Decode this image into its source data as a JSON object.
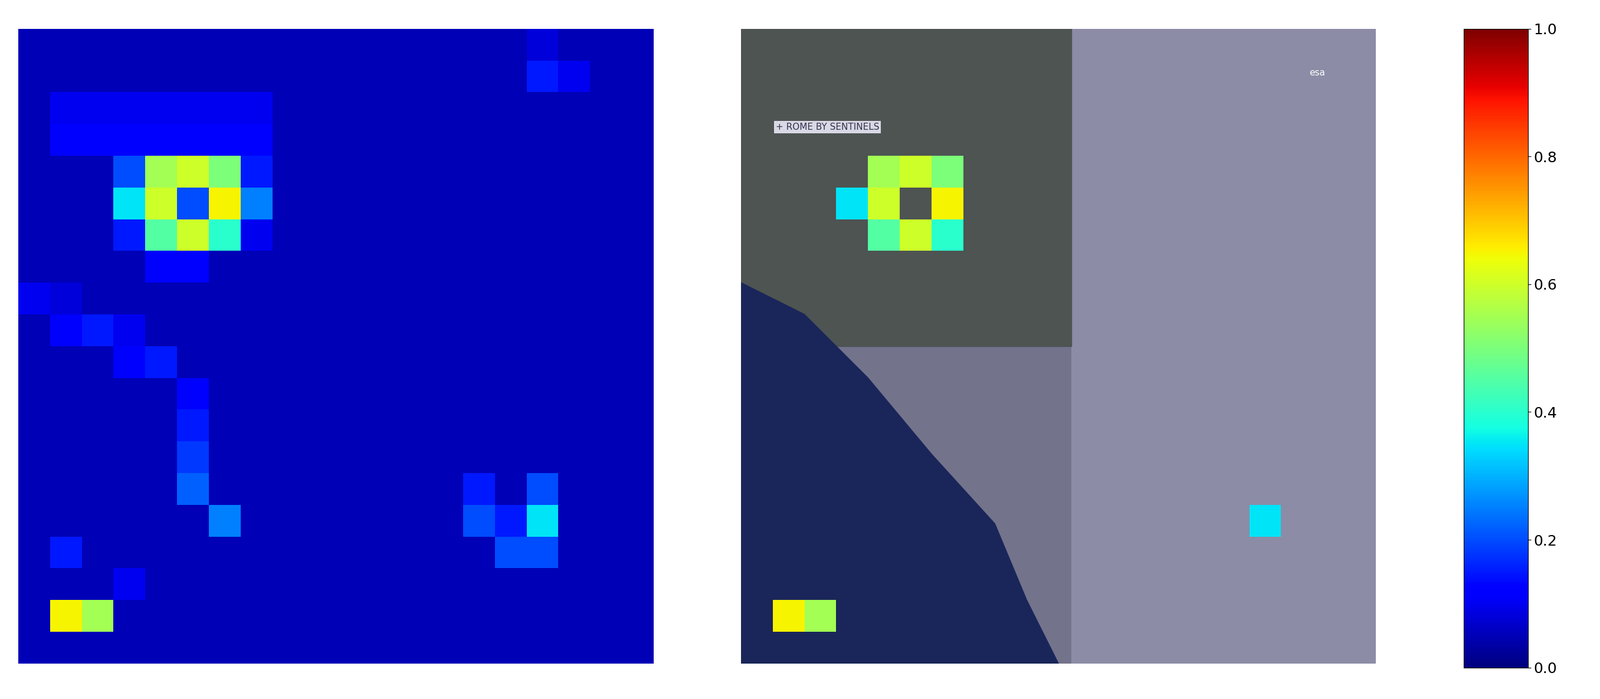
{
  "chart_data": {
    "type": "heatmap",
    "tick_labels": false,
    "cells": [
      [
        0.05,
        0.05,
        0.05,
        0.05,
        0.05,
        0.05,
        0.05,
        0.05,
        0.05,
        0.05,
        0.05,
        0.05,
        0.05,
        0.05,
        0.05,
        0.05,
        0.08,
        0.05,
        0.05,
        0.05
      ],
      [
        0.05,
        0.05,
        0.05,
        0.05,
        0.05,
        0.05,
        0.05,
        0.05,
        0.05,
        0.05,
        0.05,
        0.05,
        0.05,
        0.05,
        0.05,
        0.05,
        0.15,
        0.1,
        0.05,
        0.05
      ],
      [
        0.05,
        0.1,
        0.1,
        0.1,
        0.1,
        0.1,
        0.1,
        0.1,
        0.05,
        0.05,
        0.05,
        0.05,
        0.05,
        0.05,
        0.05,
        0.05,
        0.05,
        0.05,
        0.05,
        0.05
      ],
      [
        0.05,
        0.12,
        0.12,
        0.12,
        0.12,
        0.12,
        0.12,
        0.12,
        0.05,
        0.05,
        0.05,
        0.05,
        0.05,
        0.05,
        0.05,
        0.05,
        0.05,
        0.05,
        0.05,
        0.05
      ],
      [
        0.05,
        0.05,
        0.05,
        0.2,
        0.55,
        0.6,
        0.5,
        0.15,
        0.05,
        0.05,
        0.05,
        0.05,
        0.05,
        0.05,
        0.05,
        0.05,
        0.05,
        0.05,
        0.05,
        0.05
      ],
      [
        0.05,
        0.05,
        0.05,
        0.35,
        0.6,
        0.2,
        0.65,
        0.25,
        0.05,
        0.05,
        0.05,
        0.05,
        0.05,
        0.05,
        0.05,
        0.05,
        0.05,
        0.05,
        0.05,
        0.05
      ],
      [
        0.05,
        0.05,
        0.05,
        0.15,
        0.45,
        0.6,
        0.4,
        0.1,
        0.05,
        0.05,
        0.05,
        0.05,
        0.05,
        0.05,
        0.05,
        0.05,
        0.05,
        0.05,
        0.05,
        0.05
      ],
      [
        0.05,
        0.05,
        0.05,
        0.05,
        0.12,
        0.12,
        0.05,
        0.05,
        0.05,
        0.05,
        0.05,
        0.05,
        0.05,
        0.05,
        0.05,
        0.05,
        0.05,
        0.05,
        0.05,
        0.05
      ],
      [
        0.1,
        0.08,
        0.05,
        0.05,
        0.05,
        0.05,
        0.05,
        0.05,
        0.05,
        0.05,
        0.05,
        0.05,
        0.05,
        0.05,
        0.05,
        0.05,
        0.05,
        0.05,
        0.05,
        0.05
      ],
      [
        0.05,
        0.12,
        0.15,
        0.1,
        0.05,
        0.05,
        0.05,
        0.05,
        0.05,
        0.05,
        0.05,
        0.05,
        0.05,
        0.05,
        0.05,
        0.05,
        0.05,
        0.05,
        0.05,
        0.05
      ],
      [
        0.05,
        0.05,
        0.05,
        0.12,
        0.15,
        0.05,
        0.05,
        0.05,
        0.05,
        0.05,
        0.05,
        0.05,
        0.05,
        0.05,
        0.05,
        0.05,
        0.05,
        0.05,
        0.05,
        0.05
      ],
      [
        0.05,
        0.05,
        0.05,
        0.05,
        0.05,
        0.12,
        0.05,
        0.05,
        0.05,
        0.05,
        0.05,
        0.05,
        0.05,
        0.05,
        0.05,
        0.05,
        0.05,
        0.05,
        0.05,
        0.05
      ],
      [
        0.05,
        0.05,
        0.05,
        0.05,
        0.05,
        0.15,
        0.05,
        0.05,
        0.05,
        0.05,
        0.05,
        0.05,
        0.05,
        0.05,
        0.05,
        0.05,
        0.05,
        0.05,
        0.05,
        0.05
      ],
      [
        0.05,
        0.05,
        0.05,
        0.05,
        0.05,
        0.18,
        0.05,
        0.05,
        0.05,
        0.05,
        0.05,
        0.05,
        0.05,
        0.05,
        0.05,
        0.05,
        0.05,
        0.05,
        0.05,
        0.05
      ],
      [
        0.05,
        0.05,
        0.05,
        0.05,
        0.05,
        0.22,
        0.05,
        0.05,
        0.05,
        0.05,
        0.05,
        0.05,
        0.05,
        0.05,
        0.15,
        0.05,
        0.2,
        0.05,
        0.05,
        0.05
      ],
      [
        0.05,
        0.05,
        0.05,
        0.05,
        0.05,
        0.05,
        0.25,
        0.05,
        0.05,
        0.05,
        0.05,
        0.05,
        0.05,
        0.05,
        0.2,
        0.15,
        0.35,
        0.05,
        0.05,
        0.05
      ],
      [
        0.05,
        0.15,
        0.05,
        0.05,
        0.05,
        0.05,
        0.05,
        0.05,
        0.05,
        0.05,
        0.05,
        0.05,
        0.05,
        0.05,
        0.05,
        0.2,
        0.2,
        0.05,
        0.05,
        0.05
      ],
      [
        0.05,
        0.05,
        0.05,
        0.1,
        0.05,
        0.05,
        0.05,
        0.05,
        0.05,
        0.05,
        0.05,
        0.05,
        0.05,
        0.05,
        0.05,
        0.05,
        0.05,
        0.05,
        0.05,
        0.05
      ],
      [
        0.05,
        0.65,
        0.55,
        0.05,
        0.05,
        0.05,
        0.05,
        0.05,
        0.05,
        0.05,
        0.05,
        0.05,
        0.05,
        0.05,
        0.05,
        0.05,
        0.05,
        0.05,
        0.05,
        0.05
      ],
      [
        0.05,
        0.05,
        0.05,
        0.05,
        0.05,
        0.05,
        0.05,
        0.05,
        0.05,
        0.05,
        0.05,
        0.05,
        0.05,
        0.05,
        0.05,
        0.05,
        0.05,
        0.05,
        0.05,
        0.05
      ]
    ],
    "colorbar_range": [
      0,
      1
    ],
    "colorbar_ticks": [
      {
        "value": 0,
        "label": "0.0"
      },
      {
        "value": 0.2,
        "label": "0.2"
      },
      {
        "value": 0.4,
        "label": "0.4"
      },
      {
        "value": 0.6,
        "label": "0.6"
      },
      {
        "value": 0.8,
        "label": "0.8"
      },
      {
        "value": 1,
        "label": "1.0"
      }
    ],
    "image_texts": [
      "+ ROME BY SENTINELS",
      "esa"
    ]
  }
}
